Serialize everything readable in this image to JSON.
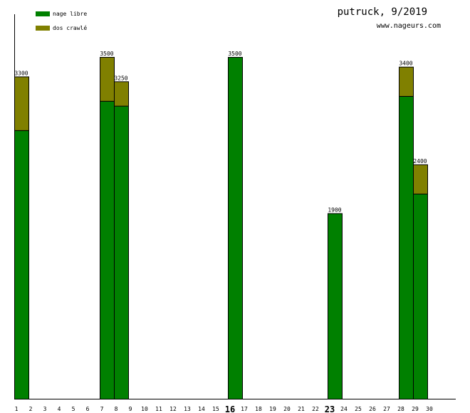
{
  "header": {
    "title": "putruck, 9/2019",
    "subtitle": "www.nageurs.com"
  },
  "chart_data": {
    "type": "bar",
    "stacked": true,
    "categories": [
      "1",
      "2",
      "3",
      "4",
      "5",
      "6",
      "7",
      "8",
      "9",
      "10",
      "11",
      "12",
      "13",
      "14",
      "15",
      "16",
      "17",
      "18",
      "19",
      "20",
      "21",
      "22",
      "23",
      "24",
      "25",
      "26",
      "27",
      "28",
      "29",
      "30"
    ],
    "highlighted_categories": [
      "16",
      "23"
    ],
    "series": [
      {
        "name": "nage libre",
        "color": "#008000",
        "values": [
          2750,
          0,
          0,
          0,
          0,
          0,
          3050,
          3000,
          0,
          0,
          0,
          0,
          0,
          0,
          0,
          3500,
          0,
          0,
          0,
          0,
          0,
          0,
          1900,
          0,
          0,
          0,
          0,
          3100,
          2100,
          0
        ]
      },
      {
        "name": "dos crawlé",
        "color": "#808000",
        "values": [
          550,
          0,
          0,
          0,
          0,
          0,
          450,
          250,
          0,
          0,
          0,
          0,
          0,
          0,
          0,
          0,
          0,
          0,
          0,
          0,
          0,
          0,
          0,
          0,
          0,
          0,
          0,
          300,
          300,
          0
        ]
      }
    ],
    "totals": [
      3300,
      0,
      0,
      0,
      0,
      0,
      3500,
      3250,
      0,
      0,
      0,
      0,
      0,
      0,
      0,
      3500,
      0,
      0,
      0,
      0,
      0,
      0,
      1900,
      0,
      0,
      0,
      0,
      3400,
      2400,
      0
    ],
    "ylim": [
      0,
      4000
    ],
    "grid": false,
    "legend_position": "top-left"
  }
}
